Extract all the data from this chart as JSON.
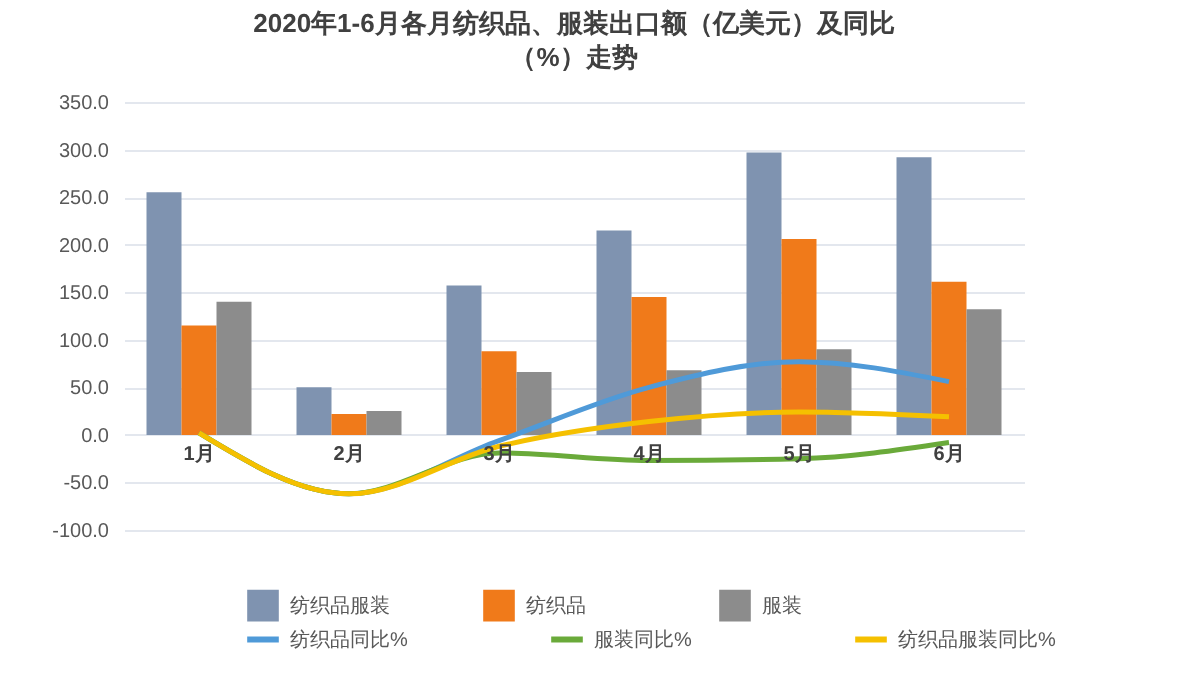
{
  "chart_data": {
    "type": "bar",
    "title": "2020年1-6月各月纺织品、服装出口额（亿美元）及同比（%）走势",
    "categories": [
      "1月",
      "2月",
      "3月",
      "4月",
      "5月",
      "6月"
    ],
    "series": [
      {
        "name": "纺织品服装",
        "color": "#7f93b0",
        "values": [
          255,
          50,
          157,
          215,
          297,
          292
        ]
      },
      {
        "name": "纺织品",
        "color": "#f07a1a",
        "values": [
          115,
          22,
          88,
          145,
          206,
          161
        ]
      },
      {
        "name": "服装",
        "color": "#8c8c8c",
        "values": [
          140,
          25,
          66,
          68,
          90,
          132
        ]
      },
      {
        "name": "纺织品同比%",
        "type": "line",
        "color": "#4f9ad8",
        "values": [
          2,
          -62,
          -6,
          50,
          77,
          56
        ]
      },
      {
        "name": "服装同比%",
        "type": "line",
        "color": "#6aaa3a",
        "values": [
          2,
          -62,
          -19,
          -27,
          -25,
          -8
        ]
      },
      {
        "name": "纺织品服装同比%",
        "type": "line",
        "color": "#f5c000",
        "values": [
          2,
          -62,
          -12,
          14,
          24,
          19
        ]
      }
    ],
    "ylim": [
      -100,
      350
    ],
    "yticks": [
      {
        "value": -100,
        "label": "-100.0"
      },
      {
        "value": -50,
        "label": "-50.0"
      },
      {
        "value": 0,
        "label": "0.0"
      },
      {
        "value": 50,
        "label": "50.0"
      },
      {
        "value": 100,
        "label": "100.0"
      },
      {
        "value": 150,
        "label": "150.0"
      },
      {
        "value": 200,
        "label": "200.0"
      },
      {
        "value": 250,
        "label": "250.0"
      },
      {
        "value": 300,
        "label": "300.0"
      },
      {
        "value": 350,
        "label": "350.0"
      }
    ],
    "grid": "y",
    "legend": "bottom"
  }
}
